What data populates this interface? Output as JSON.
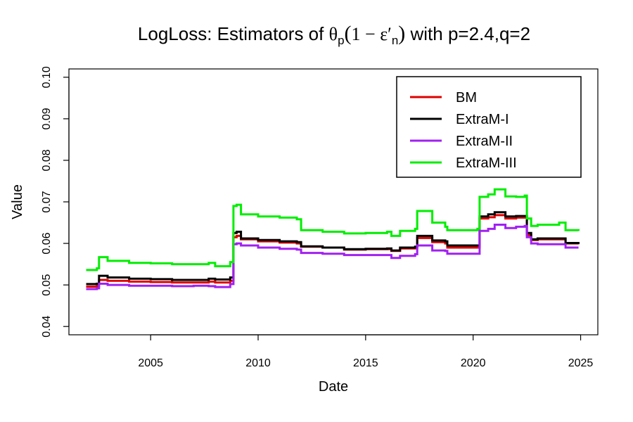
{
  "chart_data": {
    "type": "line",
    "title": {
      "prefix": "LogLoss: Estimators of ",
      "theta": "θ",
      "theta_sub": "p",
      "open_paren": "(",
      "one_minus": "1 − ε′",
      "eps_sub": "n",
      "close_paren": ")",
      "suffix": " with p=2.4,q=2"
    },
    "xlabel": "Date",
    "ylabel": "Value",
    "xlim": [
      2001.2,
      2025.8
    ],
    "ylim": [
      0.038,
      0.102
    ],
    "xticks": [
      2005,
      2010,
      2015,
      2020,
      2025
    ],
    "xtick_labels": [
      "2005",
      "2010",
      "2015",
      "2020",
      "2025"
    ],
    "yticks": [
      0.04,
      0.05,
      0.06,
      0.07,
      0.08,
      0.09,
      0.1
    ],
    "ytick_labels": [
      "0.04",
      "0.05",
      "0.06",
      "0.07",
      "0.08",
      "0.09",
      "0.10"
    ],
    "grid": false,
    "legend_position": "top-right",
    "series": [
      {
        "name": "BM",
        "color": "#e00000",
        "points": [
          [
            2002.0,
            0.0496
          ],
          [
            2002.5,
            0.0497
          ],
          [
            2002.6,
            0.0512
          ],
          [
            2003.0,
            0.051
          ],
          [
            2004.0,
            0.0508
          ],
          [
            2005.0,
            0.0507
          ],
          [
            2006.0,
            0.0506
          ],
          [
            2007.0,
            0.0506
          ],
          [
            2007.7,
            0.0508
          ],
          [
            2008.0,
            0.0506
          ],
          [
            2008.7,
            0.051
          ],
          [
            2008.85,
            0.0615
          ],
          [
            2009.0,
            0.0618
          ],
          [
            2009.2,
            0.061
          ],
          [
            2010.0,
            0.0605
          ],
          [
            2011.0,
            0.0602
          ],
          [
            2011.8,
            0.06
          ],
          [
            2012.0,
            0.0592
          ],
          [
            2013.0,
            0.059
          ],
          [
            2014.0,
            0.0585
          ],
          [
            2015.0,
            0.0586
          ],
          [
            2016.0,
            0.0586
          ],
          [
            2016.2,
            0.0582
          ],
          [
            2016.6,
            0.0588
          ],
          [
            2017.3,
            0.059
          ],
          [
            2017.4,
            0.0613
          ],
          [
            2018.0,
            0.0613
          ],
          [
            2018.1,
            0.0603
          ],
          [
            2018.7,
            0.06
          ],
          [
            2018.8,
            0.059
          ],
          [
            2019.5,
            0.059
          ],
          [
            2020.2,
            0.059
          ],
          [
            2020.3,
            0.066
          ],
          [
            2020.7,
            0.0663
          ],
          [
            2021.0,
            0.0668
          ],
          [
            2021.5,
            0.066
          ],
          [
            2022.0,
            0.0662
          ],
          [
            2022.4,
            0.0665
          ],
          [
            2022.5,
            0.062
          ],
          [
            2022.7,
            0.0608
          ],
          [
            2023.0,
            0.061
          ],
          [
            2024.0,
            0.061
          ],
          [
            2024.3,
            0.06
          ],
          [
            2024.9,
            0.0598
          ]
        ]
      },
      {
        "name": "ExtraM-I",
        "color": "#000000",
        "points": [
          [
            2002.0,
            0.0502
          ],
          [
            2002.5,
            0.0503
          ],
          [
            2002.6,
            0.0522
          ],
          [
            2003.0,
            0.0518
          ],
          [
            2004.0,
            0.0515
          ],
          [
            2005.0,
            0.0514
          ],
          [
            2006.0,
            0.0512
          ],
          [
            2007.0,
            0.0512
          ],
          [
            2007.7,
            0.0515
          ],
          [
            2008.0,
            0.0513
          ],
          [
            2008.7,
            0.0518
          ],
          [
            2008.85,
            0.0625
          ],
          [
            2009.0,
            0.0628
          ],
          [
            2009.2,
            0.0612
          ],
          [
            2010.0,
            0.0608
          ],
          [
            2011.0,
            0.0605
          ],
          [
            2011.8,
            0.0603
          ],
          [
            2012.0,
            0.0593
          ],
          [
            2013.0,
            0.059
          ],
          [
            2014.0,
            0.0586
          ],
          [
            2015.0,
            0.0587
          ],
          [
            2016.0,
            0.0588
          ],
          [
            2016.2,
            0.0583
          ],
          [
            2016.6,
            0.059
          ],
          [
            2017.3,
            0.0592
          ],
          [
            2017.4,
            0.0618
          ],
          [
            2018.0,
            0.0618
          ],
          [
            2018.1,
            0.0607
          ],
          [
            2018.7,
            0.0605
          ],
          [
            2018.8,
            0.0595
          ],
          [
            2019.5,
            0.0595
          ],
          [
            2020.2,
            0.0595
          ],
          [
            2020.3,
            0.0665
          ],
          [
            2020.7,
            0.067
          ],
          [
            2021.0,
            0.0675
          ],
          [
            2021.5,
            0.0665
          ],
          [
            2022.0,
            0.0666
          ],
          [
            2022.4,
            0.0666
          ],
          [
            2022.5,
            0.0625
          ],
          [
            2022.7,
            0.061
          ],
          [
            2023.0,
            0.0612
          ],
          [
            2024.0,
            0.0612
          ],
          [
            2024.3,
            0.0601
          ],
          [
            2024.9,
            0.0599
          ]
        ]
      },
      {
        "name": "ExtraM-II",
        "color": "#a020f0",
        "points": [
          [
            2002.0,
            0.049
          ],
          [
            2002.5,
            0.0492
          ],
          [
            2002.6,
            0.0503
          ],
          [
            2003.0,
            0.05
          ],
          [
            2004.0,
            0.0498
          ],
          [
            2005.0,
            0.0498
          ],
          [
            2006.0,
            0.0497
          ],
          [
            2007.0,
            0.0498
          ],
          [
            2007.7,
            0.0497
          ],
          [
            2008.0,
            0.0495
          ],
          [
            2008.7,
            0.0502
          ],
          [
            2008.85,
            0.0598
          ],
          [
            2009.0,
            0.06
          ],
          [
            2009.2,
            0.0595
          ],
          [
            2010.0,
            0.059
          ],
          [
            2011.0,
            0.0587
          ],
          [
            2011.8,
            0.0585
          ],
          [
            2012.0,
            0.0577
          ],
          [
            2013.0,
            0.0575
          ],
          [
            2014.0,
            0.0572
          ],
          [
            2015.0,
            0.0572
          ],
          [
            2016.0,
            0.0572
          ],
          [
            2016.2,
            0.0565
          ],
          [
            2016.6,
            0.057
          ],
          [
            2017.3,
            0.0574
          ],
          [
            2017.4,
            0.0595
          ],
          [
            2018.0,
            0.0595
          ],
          [
            2018.1,
            0.0583
          ],
          [
            2018.7,
            0.0582
          ],
          [
            2018.8,
            0.0575
          ],
          [
            2019.5,
            0.0575
          ],
          [
            2020.2,
            0.0575
          ],
          [
            2020.3,
            0.063
          ],
          [
            2020.7,
            0.0635
          ],
          [
            2021.0,
            0.0645
          ],
          [
            2021.5,
            0.0637
          ],
          [
            2022.0,
            0.064
          ],
          [
            2022.4,
            0.0642
          ],
          [
            2022.5,
            0.0615
          ],
          [
            2022.7,
            0.06
          ],
          [
            2023.0,
            0.0598
          ],
          [
            2024.0,
            0.0598
          ],
          [
            2024.3,
            0.059
          ],
          [
            2024.9,
            0.059
          ]
        ]
      },
      {
        "name": "ExtraM-III",
        "color": "#00ee00",
        "points": [
          [
            2002.0,
            0.0536
          ],
          [
            2002.5,
            0.054
          ],
          [
            2002.6,
            0.0567
          ],
          [
            2003.0,
            0.0558
          ],
          [
            2004.0,
            0.0553
          ],
          [
            2005.0,
            0.0552
          ],
          [
            2006.0,
            0.055
          ],
          [
            2007.0,
            0.055
          ],
          [
            2007.7,
            0.0553
          ],
          [
            2008.0,
            0.0545
          ],
          [
            2008.7,
            0.0555
          ],
          [
            2008.85,
            0.069
          ],
          [
            2009.0,
            0.0693
          ],
          [
            2009.2,
            0.067
          ],
          [
            2010.0,
            0.0665
          ],
          [
            2011.0,
            0.0662
          ],
          [
            2011.8,
            0.0658
          ],
          [
            2012.0,
            0.0632
          ],
          [
            2013.0,
            0.0628
          ],
          [
            2014.0,
            0.0624
          ],
          [
            2015.0,
            0.0625
          ],
          [
            2016.0,
            0.0628
          ],
          [
            2016.2,
            0.0618
          ],
          [
            2016.6,
            0.063
          ],
          [
            2017.3,
            0.0635
          ],
          [
            2017.4,
            0.0678
          ],
          [
            2018.0,
            0.0678
          ],
          [
            2018.1,
            0.065
          ],
          [
            2018.7,
            0.064
          ],
          [
            2018.8,
            0.0632
          ],
          [
            2019.5,
            0.0632
          ],
          [
            2020.2,
            0.0635
          ],
          [
            2020.3,
            0.0712
          ],
          [
            2020.7,
            0.0718
          ],
          [
            2021.0,
            0.073
          ],
          [
            2021.5,
            0.0713
          ],
          [
            2022.0,
            0.0712
          ],
          [
            2022.4,
            0.0715
          ],
          [
            2022.5,
            0.066
          ],
          [
            2022.7,
            0.0642
          ],
          [
            2023.0,
            0.0645
          ],
          [
            2024.0,
            0.065
          ],
          [
            2024.3,
            0.0632
          ],
          [
            2024.9,
            0.063
          ]
        ]
      }
    ]
  }
}
